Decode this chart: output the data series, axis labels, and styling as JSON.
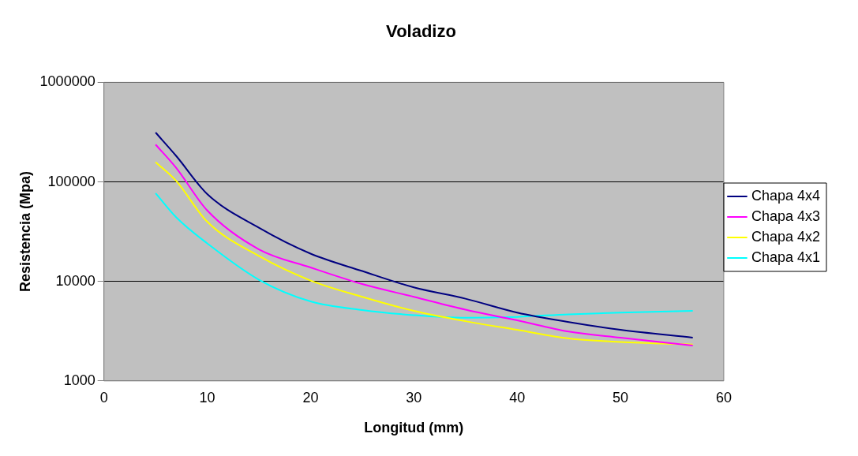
{
  "chart_data": {
    "type": "line",
    "title": "Voladizo",
    "xlabel": "Longitud (mm)",
    "ylabel": "Resistencia (Mpa)",
    "x": [
      5,
      7,
      10,
      15,
      20,
      25,
      30,
      35,
      40,
      45,
      50,
      57
    ],
    "series": [
      {
        "name": "Chapa 4x4",
        "color": "#000080",
        "values": [
          313000,
          182000,
          75500,
          34600,
          19000,
          12700,
          8700,
          6700,
          4860,
          3900,
          3260,
          2720
        ]
      },
      {
        "name": "Chapa 4x3",
        "color": "#ff00ff",
        "values": [
          237000,
          138000,
          51600,
          21000,
          13800,
          9400,
          7000,
          5200,
          4060,
          3130,
          2720,
          2270
        ]
      },
      {
        "name": "Chapa 4x2",
        "color": "#ffff00",
        "values": [
          158000,
          102000,
          39800,
          18000,
          10200,
          7000,
          5060,
          3980,
          3260,
          2670,
          2460,
          2320
        ]
      },
      {
        "name": "Chapa 4x1",
        "color": "#00ffff",
        "values": [
          77100,
          44000,
          24100,
          10400,
          6300,
          5160,
          4580,
          4310,
          4400,
          4670,
          4860,
          5060
        ]
      }
    ],
    "xlim": [
      0,
      60
    ],
    "xticks": [
      0,
      10,
      20,
      30,
      40,
      50,
      60
    ],
    "ylim": [
      1000,
      1000000
    ],
    "yticks": [
      1000,
      10000,
      100000,
      1000000
    ],
    "log": "y",
    "grid": "y",
    "legend": "right",
    "marker": "none",
    "line_style": "solid"
  }
}
